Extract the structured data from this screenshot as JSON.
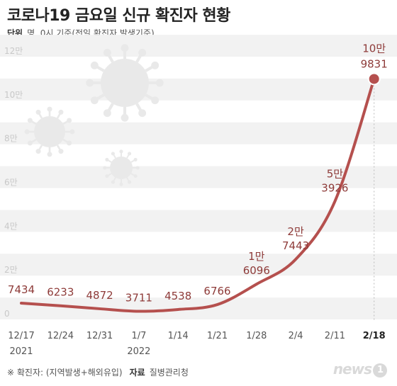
{
  "header": {
    "title": "코로나19 금요일 신규 확진자 현황",
    "unit_label": "단위",
    "unit_text": "명, 0시 기준(전일 확진자 발생기준)"
  },
  "footer": {
    "note": "※ 확진자: (지역발생+해외유입)",
    "source_label": "자료",
    "source": "질병관리청",
    "logo": "news",
    "logo_mark": "1"
  },
  "colors": {
    "line": "#b5504e",
    "label": "#8e3b39",
    "band": "#f2f2f2",
    "axis_text": "#c8c8c8",
    "virus": "#e9e9e9"
  },
  "icons": [
    "virus-icon",
    "virus-icon",
    "virus-icon"
  ],
  "chart_data": {
    "type": "line",
    "ylim": [
      0,
      120000
    ],
    "y_ticks": [
      0,
      20000,
      40000,
      60000,
      80000,
      100000,
      120000
    ],
    "y_tick_labels": [
      "0",
      "2만",
      "4만",
      "6만",
      "8만",
      "10만",
      "12만"
    ],
    "grid": "alternating bands",
    "x": [
      "12/17",
      "12/24",
      "12/31",
      "1/7",
      "1/14",
      "1/21",
      "1/28",
      "2/4",
      "2/11",
      "2/18"
    ],
    "x_sub_labels": [
      "2021",
      "",
      "",
      "2022",
      "",
      "",
      "",
      "",
      "",
      ""
    ],
    "values": [
      7434,
      6233,
      4872,
      3711,
      4538,
      6766,
      16096,
      27443,
      53926,
      109831
    ],
    "point_labels": [
      [
        "7434"
      ],
      [
        "6233"
      ],
      [
        "4872"
      ],
      [
        "3711"
      ],
      [
        "4538"
      ],
      [
        "6766"
      ],
      [
        "1만",
        "6096"
      ],
      [
        "2만",
        "7443"
      ],
      [
        "5만",
        "3926"
      ],
      [
        "10만",
        "9831"
      ]
    ],
    "highlight_index": 9
  }
}
